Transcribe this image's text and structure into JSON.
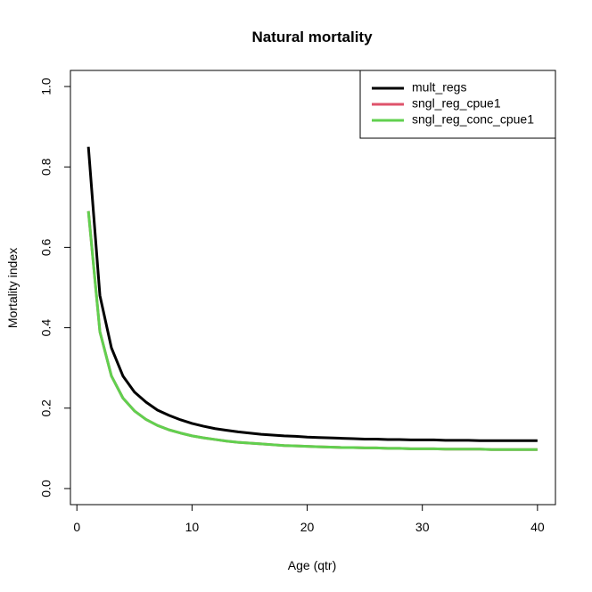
{
  "chart_data": {
    "type": "line",
    "title": "Natural mortality",
    "xlabel": "Age (qtr)",
    "ylabel": "Mortality index",
    "xlim": [
      0,
      41
    ],
    "ylim": [
      0,
      1.0
    ],
    "xticks": [
      0,
      10,
      20,
      30,
      40
    ],
    "yticks": [
      0.0,
      0.2,
      0.4,
      0.6,
      0.8,
      1.0
    ],
    "ytick_labels": [
      "0.0",
      "0.2",
      "0.4",
      "0.6",
      "0.8",
      "1.0"
    ],
    "grid": false,
    "legend_position": "top-right",
    "series": [
      {
        "name": "mult_regs",
        "color": "#000000",
        "x": [
          1,
          2,
          3,
          4,
          5,
          6,
          7,
          8,
          9,
          10,
          11,
          12,
          13,
          14,
          15,
          16,
          17,
          18,
          19,
          20,
          21,
          22,
          23,
          24,
          25,
          26,
          27,
          28,
          29,
          30,
          31,
          32,
          33,
          34,
          35,
          36,
          37,
          38,
          39,
          40
        ],
        "y": [
          0.85,
          0.48,
          0.35,
          0.28,
          0.24,
          0.215,
          0.195,
          0.182,
          0.171,
          0.162,
          0.155,
          0.149,
          0.145,
          0.141,
          0.138,
          0.135,
          0.133,
          0.131,
          0.13,
          0.128,
          0.127,
          0.126,
          0.125,
          0.124,
          0.123,
          0.123,
          0.122,
          0.122,
          0.121,
          0.121,
          0.121,
          0.12,
          0.12,
          0.12,
          0.119,
          0.119,
          0.119,
          0.119,
          0.119,
          0.119
        ]
      },
      {
        "name": "sngl_reg_cpue1",
        "color": "#DF536B",
        "x": [
          1,
          2,
          3,
          4,
          5,
          6,
          7,
          8,
          9,
          10,
          11,
          12,
          13,
          14,
          15,
          16,
          17,
          18,
          19,
          20,
          21,
          22,
          23,
          24,
          25,
          26,
          27,
          28,
          29,
          30,
          31,
          32,
          33,
          34,
          35,
          36,
          37,
          38,
          39,
          40
        ],
        "y": [
          0.69,
          0.39,
          0.28,
          0.225,
          0.193,
          0.172,
          0.157,
          0.146,
          0.138,
          0.131,
          0.126,
          0.122,
          0.118,
          0.115,
          0.113,
          0.111,
          0.109,
          0.107,
          0.106,
          0.105,
          0.104,
          0.103,
          0.102,
          0.102,
          0.101,
          0.101,
          0.1,
          0.1,
          0.099,
          0.099,
          0.099,
          0.098,
          0.098,
          0.098,
          0.098,
          0.097,
          0.097,
          0.097,
          0.097,
          0.097
        ]
      },
      {
        "name": "sngl_reg_conc_cpue1",
        "color": "#61D04F",
        "x": [
          1,
          2,
          3,
          4,
          5,
          6,
          7,
          8,
          9,
          10,
          11,
          12,
          13,
          14,
          15,
          16,
          17,
          18,
          19,
          20,
          21,
          22,
          23,
          24,
          25,
          26,
          27,
          28,
          29,
          30,
          31,
          32,
          33,
          34,
          35,
          36,
          37,
          38,
          39,
          40
        ],
        "y": [
          0.69,
          0.39,
          0.28,
          0.225,
          0.193,
          0.172,
          0.157,
          0.146,
          0.138,
          0.131,
          0.126,
          0.122,
          0.118,
          0.115,
          0.113,
          0.111,
          0.109,
          0.107,
          0.106,
          0.105,
          0.104,
          0.103,
          0.102,
          0.102,
          0.101,
          0.101,
          0.1,
          0.1,
          0.099,
          0.099,
          0.099,
          0.098,
          0.098,
          0.098,
          0.098,
          0.097,
          0.097,
          0.097,
          0.097,
          0.097
        ]
      }
    ]
  }
}
